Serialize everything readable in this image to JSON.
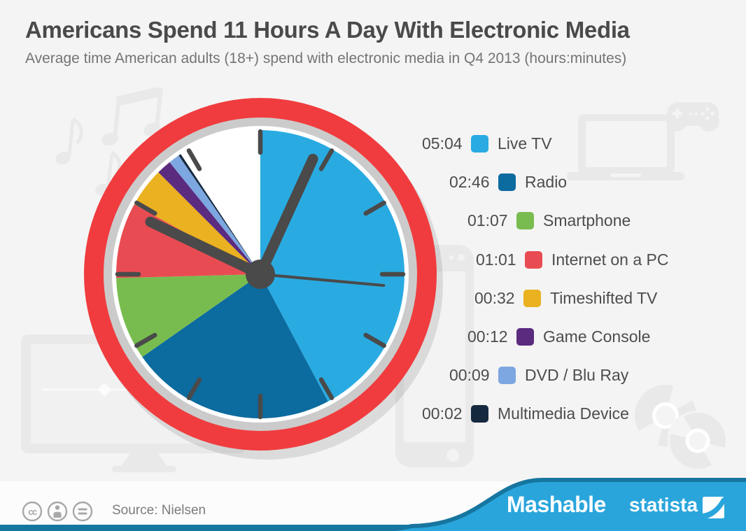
{
  "header": {
    "title": "Americans Spend 11 Hours A Day With Electronic Media",
    "subtitle": "Average time American adults (18+) spend with electronic media in Q4 2013 (hours:minutes)"
  },
  "chart_data": {
    "type": "pie",
    "title": "Americans Spend 11 Hours A Day With Electronic Media",
    "unit": "hours:minutes",
    "dial_total_minutes": 720,
    "categories": [
      "Live TV",
      "Radio",
      "Smartphone",
      "Internet on a PC",
      "Timeshifted TV",
      "Game Console",
      "DVD / Blu Ray",
      "Multimedia Device"
    ],
    "values_hhmm": [
      "05:04",
      "02:46",
      "01:07",
      "01:01",
      "00:32",
      "00:12",
      "00:09",
      "00:02"
    ],
    "values_minutes": [
      304,
      166,
      67,
      61,
      32,
      12,
      9,
      2
    ],
    "colors": [
      "#29ABE2",
      "#0C6B9F",
      "#78BC4F",
      "#E84C52",
      "#EAB120",
      "#5B2B80",
      "#7DA7E0",
      "#15293E"
    ],
    "remainder_minutes": 67,
    "remainder_color": "#FFFFFF",
    "legend_position": "right"
  },
  "clock": {
    "ring_color": "#F03C3E",
    "inner_gray_ring_color": "#CBCBCB",
    "face_color": "#FFFFFF",
    "tick_hand_color": "#4A4A4A"
  },
  "footer": {
    "source": "Source: Nielsen",
    "brand_mashable": "Mashable",
    "brand_statista": "statista",
    "wave_color": "#29A5DC",
    "wave_edge_color": "#17769F",
    "band_color": "#FCFCFC",
    "license_icons": [
      "cc",
      "attribution",
      "no-derivatives"
    ]
  },
  "background_icons": [
    "music-notes",
    "laptop",
    "game-controller",
    "smartphone",
    "tv-monitor",
    "cd-discs"
  ]
}
